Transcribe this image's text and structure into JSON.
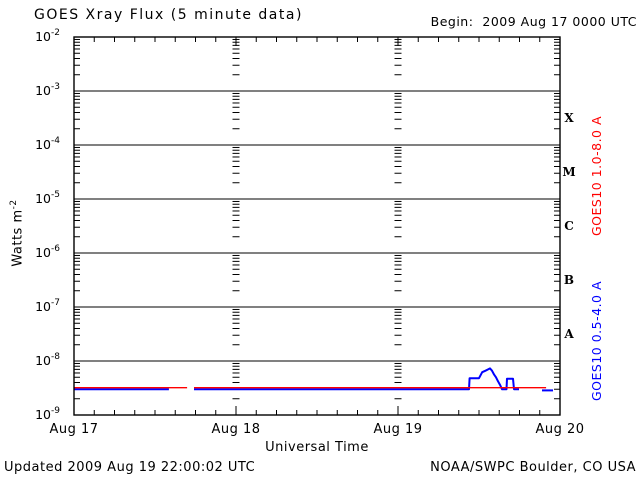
{
  "header": {
    "title": "GOES Xray Flux (5 minute data)",
    "begin_label": "Begin:  2009 Aug 17 0000 UTC"
  },
  "footer": {
    "updated": "Updated 2009 Aug 19 22:00:02 UTC",
    "source": "NOAA/SWPC Boulder, CO USA"
  },
  "colors": {
    "background": "#ffffff",
    "axis": "#000000",
    "long_band": "#ff0000",
    "short_band": "#0000ff"
  },
  "chart_data": {
    "type": "line",
    "title": "GOES Xray Flux (5 minute data)",
    "begin_label": "Begin:  2009 Aug 17 0000 UTC",
    "xlabel": "Universal Time",
    "ylabel_base": "Watts m",
    "ylabel_exponent": "-2",
    "x_day_labels": [
      "Aug 17",
      "Aug 18",
      "Aug 19",
      "Aug 20"
    ],
    "x_range_days": [
      0,
      3
    ],
    "x_minor_tick_hours": 3,
    "y_exponent_range": [
      -9,
      -2
    ],
    "y_scale": "log",
    "grid": "solid horizontal lines at each decade; dashed vertical columns at day boundaries",
    "minor_tick_multipliers": [
      2,
      3,
      4,
      5,
      6,
      7,
      8,
      9
    ],
    "flux_classes": [
      {
        "label": "X",
        "between_exponents": [
          -4,
          -3
        ]
      },
      {
        "label": "M",
        "between_exponents": [
          -5,
          -4
        ]
      },
      {
        "label": "C",
        "between_exponents": [
          -6,
          -5
        ]
      },
      {
        "label": "B",
        "between_exponents": [
          -7,
          -6
        ]
      },
      {
        "label": "A",
        "between_exponents": [
          -8,
          -7
        ]
      }
    ],
    "series": [
      {
        "name": "GOES10 0.5-4.0 A",
        "axis_label": "GOES10 0.5-4.0 A",
        "color": "#0000ff",
        "stroke_width": 2,
        "segments": [
          [
            [
              0.0,
              3e-09
            ],
            [
              0.586,
              3e-09
            ]
          ],
          [
            [
              0.741,
              3e-09
            ],
            [
              2.438,
              3e-09
            ],
            [
              2.442,
              4.8e-09
            ],
            [
              2.5,
              4.8e-09
            ],
            [
              2.52,
              6.2e-09
            ],
            [
              2.54,
              6.6e-09
            ],
            [
              2.556,
              7e-09
            ],
            [
              2.568,
              7.3e-09
            ],
            [
              2.58,
              6.6e-09
            ],
            [
              2.593,
              5.6e-09
            ],
            [
              2.605,
              5e-09
            ],
            [
              2.617,
              4.2e-09
            ],
            [
              2.63,
              3.6e-09
            ],
            [
              2.642,
              3e-09
            ],
            [
              2.67,
              3e-09
            ],
            [
              2.673,
              4.7e-09
            ],
            [
              2.71,
              4.7e-09
            ],
            [
              2.716,
              3e-09
            ],
            [
              2.747,
              3e-09
            ]
          ],
          [
            [
              2.889,
              2.85e-09
            ],
            [
              2.957,
              2.85e-09
            ]
          ]
        ]
      },
      {
        "name": "GOES10 1.0-8.0 A",
        "axis_label": "GOES10 1.0-8.0 A",
        "color": "#ff0000",
        "stroke_width": 1.3,
        "segments": [
          [
            [
              0.0,
              3.2e-09
            ],
            [
              0.698,
              3.2e-09
            ]
          ],
          [
            [
              0.741,
              3.2e-09
            ],
            [
              2.914,
              3.2e-09
            ]
          ]
        ]
      }
    ]
  }
}
